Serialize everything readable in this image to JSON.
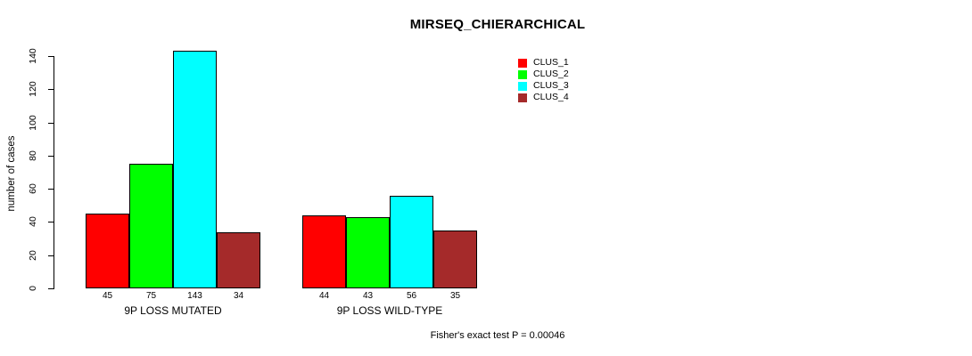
{
  "title": "MIRSEQ_CHIERARCHICAL",
  "footnote": "Fisher's exact test P = 0.00046",
  "colors": {
    "clus_1": "#FF0000",
    "clus_2": "#00FF00",
    "clus_3": "#00FFFF",
    "clus_4": "#A52A2A",
    "axis": "#000000",
    "background": "#FFFFFF"
  },
  "chart_data": {
    "type": "bar",
    "title": "MIRSEQ_CHIERARCHICAL",
    "xlabel": "",
    "ylabel": "number of cases",
    "ylim": [
      0,
      140
    ],
    "yticks": [
      0,
      20,
      40,
      60,
      80,
      100,
      120,
      140
    ],
    "grid": false,
    "legend_position": "top-right",
    "categories": [
      "9P LOSS MUTATED",
      "9P LOSS WILD-TYPE"
    ],
    "series": [
      {
        "name": "CLUS_1",
        "color": "#FF0000",
        "values": [
          45,
          44
        ]
      },
      {
        "name": "CLUS_2",
        "color": "#00FF00",
        "values": [
          75,
          43
        ]
      },
      {
        "name": "CLUS_3",
        "color": "#00FFFF",
        "values": [
          143,
          56
        ]
      },
      {
        "name": "CLUS_4",
        "color": "#A52A2A",
        "values": [
          34,
          35
        ]
      }
    ],
    "bar_value_labels": [
      [
        45,
        75,
        143,
        34
      ],
      [
        44,
        43,
        56,
        35
      ]
    ],
    "annotation": "Fisher's exact test P = 0.00046"
  }
}
